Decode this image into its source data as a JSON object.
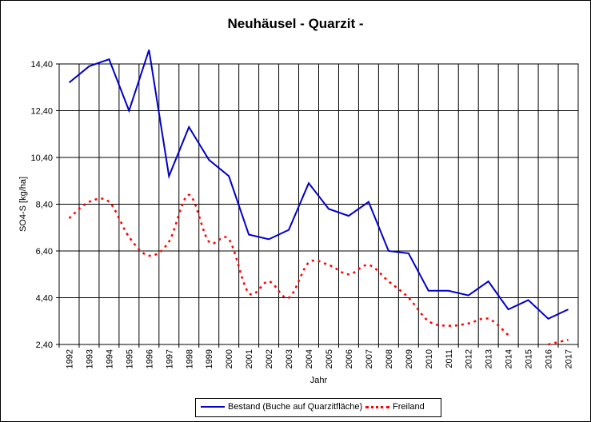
{
  "chart_data": {
    "type": "line",
    "title": "Neuhäusel - Quarzit -",
    "xlabel": "Jahr",
    "ylabel": "SO4-S [kg/ha]",
    "ylim": [
      2.4,
      14.4
    ],
    "yticks": [
      "14,40",
      "12,40",
      "10,40",
      "8,40",
      "6,40",
      "4,40",
      "2,40"
    ],
    "ytick_values": [
      14.4,
      12.4,
      10.4,
      8.4,
      6.4,
      4.4,
      2.4
    ],
    "categories": [
      "1992",
      "1993",
      "1994",
      "1995",
      "1996",
      "1997",
      "1998",
      "1999",
      "2000",
      "2001",
      "2002",
      "2003",
      "2004",
      "2005",
      "2006",
      "2007",
      "2008",
      "2009",
      "2010",
      "2011",
      "2012",
      "2013",
      "2014",
      "2015",
      "2016",
      "2017"
    ],
    "grid": true,
    "legend_position": "bottom",
    "series": [
      {
        "name": "Bestand (Buche auf Quarzitfläche)",
        "color": "#0000cc",
        "style": "solid",
        "values": [
          13.6,
          14.3,
          14.6,
          12.4,
          15.0,
          9.6,
          11.7,
          10.3,
          9.6,
          7.1,
          6.9,
          7.3,
          9.3,
          8.2,
          7.9,
          8.5,
          6.4,
          6.3,
          4.7,
          4.7,
          4.5,
          5.1,
          3.9,
          4.3,
          3.5,
          3.9
        ]
      },
      {
        "name": "Freiland",
        "color": "#ff0000",
        "style": "dotted",
        "values": [
          7.8,
          8.5,
          8.5,
          7.0,
          6.2,
          6.8,
          8.8,
          6.8,
          6.9,
          4.6,
          5.1,
          4.4,
          5.9,
          5.8,
          5.4,
          5.8,
          5.1,
          4.4,
          3.4,
          3.2,
          3.3,
          3.5,
          2.8,
          null,
          2.4,
          2.6
        ]
      }
    ]
  }
}
